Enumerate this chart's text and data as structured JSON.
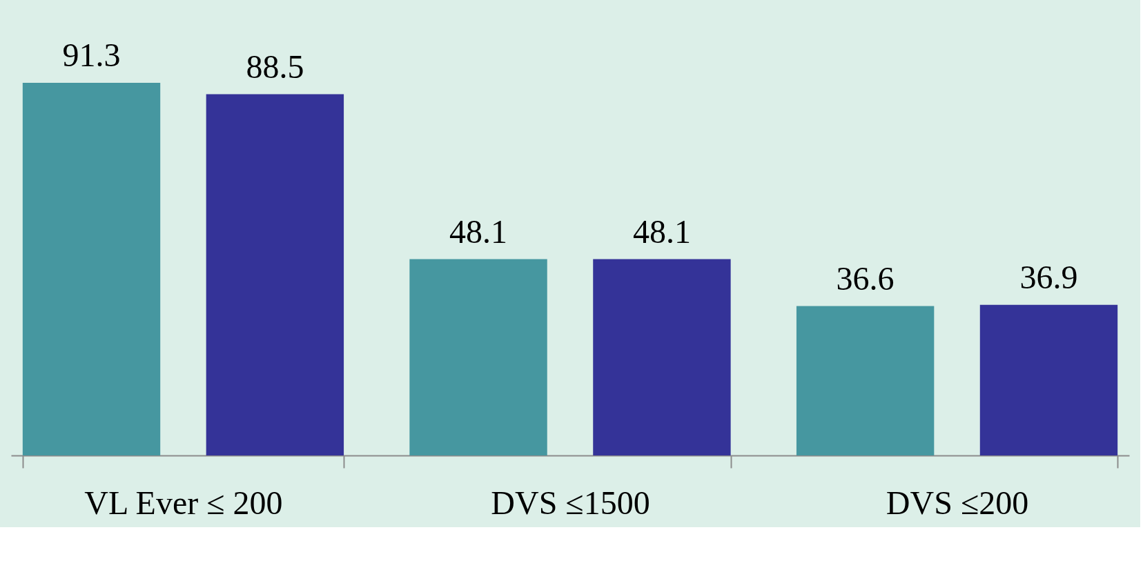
{
  "chart_data": {
    "type": "bar",
    "categories": [
      "VL Ever ≤ 200",
      "DVS ≤1500",
      "DVS ≤200"
    ],
    "series": [
      {
        "color": "#4697a0",
        "values": [
          91.3,
          48.1,
          36.6
        ]
      },
      {
        "color": "#343398",
        "values": [
          88.5,
          48.1,
          36.9
        ]
      }
    ],
    "data_labels": true,
    "grid": false
  }
}
